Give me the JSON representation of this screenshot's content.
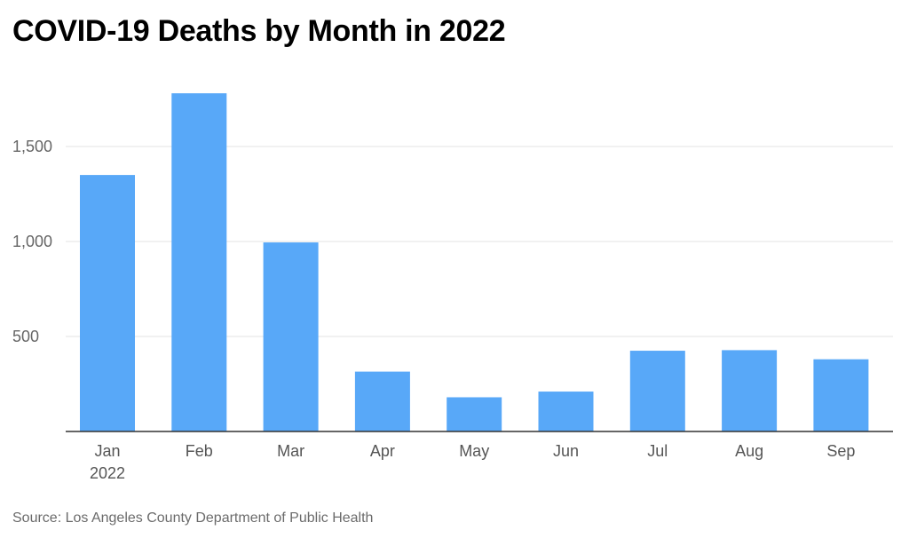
{
  "chart_data": {
    "type": "bar",
    "title": "COVID-19 Deaths by Month in 2022",
    "categories": [
      "Jan",
      "Feb",
      "Mar",
      "Apr",
      "May",
      "Jun",
      "Jul",
      "Aug",
      "Sep"
    ],
    "category_sublabels": [
      "2022",
      "",
      "",
      "",
      "",
      "",
      "",
      "",
      ""
    ],
    "values": [
      1350,
      1780,
      995,
      315,
      180,
      210,
      425,
      428,
      380
    ],
    "ylim": [
      0,
      1800
    ],
    "yticks": [
      500,
      1000,
      1500
    ],
    "ytick_labels": [
      "500",
      "1,000",
      "1,500"
    ],
    "grid": true,
    "bar_color": "#58a8f8",
    "source": "Source: Los Angeles County Department of Public Health"
  }
}
